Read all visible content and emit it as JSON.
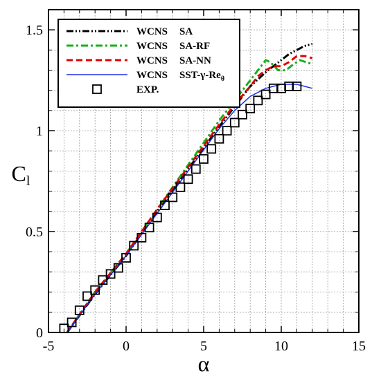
{
  "chart_data": {
    "type": "line",
    "xlabel": "α",
    "ylabel_main": "C",
    "ylabel_sub": "l",
    "xlim": [
      -5,
      15
    ],
    "ylim": [
      0,
      1.6
    ],
    "x_ticks": [
      -5,
      0,
      5,
      10,
      15
    ],
    "x_tick_labels": [
      "-5",
      "0",
      "5",
      "10",
      "15"
    ],
    "y_ticks": [
      0,
      0.5,
      1,
      1.5
    ],
    "y_tick_labels": [
      "0",
      "0.5",
      "1",
      "1.5"
    ],
    "grid": true,
    "legend_position": "top-left",
    "legend": [
      {
        "method": "WCNS",
        "model": "SA"
      },
      {
        "method": "WCNS",
        "model": "SA-RF"
      },
      {
        "method": "WCNS",
        "model": "SA-NN"
      },
      {
        "method": "WCNS",
        "model": "SST-γ-Re",
        "model_sub": "θ"
      },
      {
        "method": "",
        "model": "EXP."
      }
    ],
    "series": [
      {
        "color": "#000000",
        "dash": "dashdotdot",
        "x": [
          -3.8,
          -2,
          0,
          2,
          4,
          6,
          7,
          8,
          9,
          9.5,
          10,
          10.5,
          11,
          11.5,
          12
        ],
        "y": [
          0.0,
          0.19,
          0.38,
          0.6,
          0.81,
          1.02,
          1.12,
          1.22,
          1.29,
          1.32,
          1.35,
          1.38,
          1.4,
          1.42,
          1.43
        ]
      },
      {
        "color": "#16b016",
        "dash": "dashdot",
        "x": [
          -3.8,
          -2,
          0,
          2,
          4,
          6,
          7,
          8,
          8.5,
          9,
          9.3,
          9.8,
          10.3,
          10.8,
          11.2,
          11.6,
          12
        ],
        "y": [
          0.0,
          0.2,
          0.39,
          0.61,
          0.83,
          1.05,
          1.15,
          1.25,
          1.3,
          1.35,
          1.34,
          1.3,
          1.3,
          1.33,
          1.35,
          1.34,
          1.33
        ]
      },
      {
        "color": "#e00000",
        "dash": "dash",
        "x": [
          -3.8,
          -2,
          0,
          2,
          4,
          6,
          7,
          8,
          8.5,
          9,
          9.5,
          10,
          10.5,
          11,
          11.5,
          12
        ],
        "y": [
          0.0,
          0.2,
          0.39,
          0.61,
          0.82,
          1.03,
          1.13,
          1.22,
          1.27,
          1.3,
          1.32,
          1.32,
          1.34,
          1.37,
          1.37,
          1.36
        ]
      },
      {
        "color": "#1f2fe0",
        "dash": "solid",
        "x": [
          -3.8,
          -2,
          0,
          2,
          4,
          6,
          7,
          8,
          8.5,
          9,
          9.5,
          10,
          10.5,
          11,
          11.5,
          12
        ],
        "y": [
          0.0,
          0.19,
          0.38,
          0.59,
          0.8,
          1.01,
          1.1,
          1.17,
          1.19,
          1.21,
          1.22,
          1.23,
          1.23,
          1.23,
          1.22,
          1.21
        ]
      }
    ],
    "experimental": {
      "x": [
        -4,
        -3.5,
        -3,
        -2.5,
        -2,
        -1.5,
        -1,
        -0.5,
        0,
        0.5,
        1,
        1.5,
        2,
        2.5,
        3,
        3.5,
        4,
        4.5,
        5,
        5.5,
        6,
        6.5,
        7,
        7.5,
        8,
        8.5,
        9,
        9.5,
        10,
        10.5,
        11
      ],
      "y": [
        0.02,
        0.05,
        0.11,
        0.18,
        0.21,
        0.26,
        0.29,
        0.32,
        0.37,
        0.43,
        0.47,
        0.52,
        0.57,
        0.63,
        0.67,
        0.72,
        0.76,
        0.81,
        0.86,
        0.91,
        0.96,
        1.0,
        1.04,
        1.08,
        1.11,
        1.15,
        1.18,
        1.21,
        1.21,
        1.22,
        1.22
      ]
    }
  }
}
